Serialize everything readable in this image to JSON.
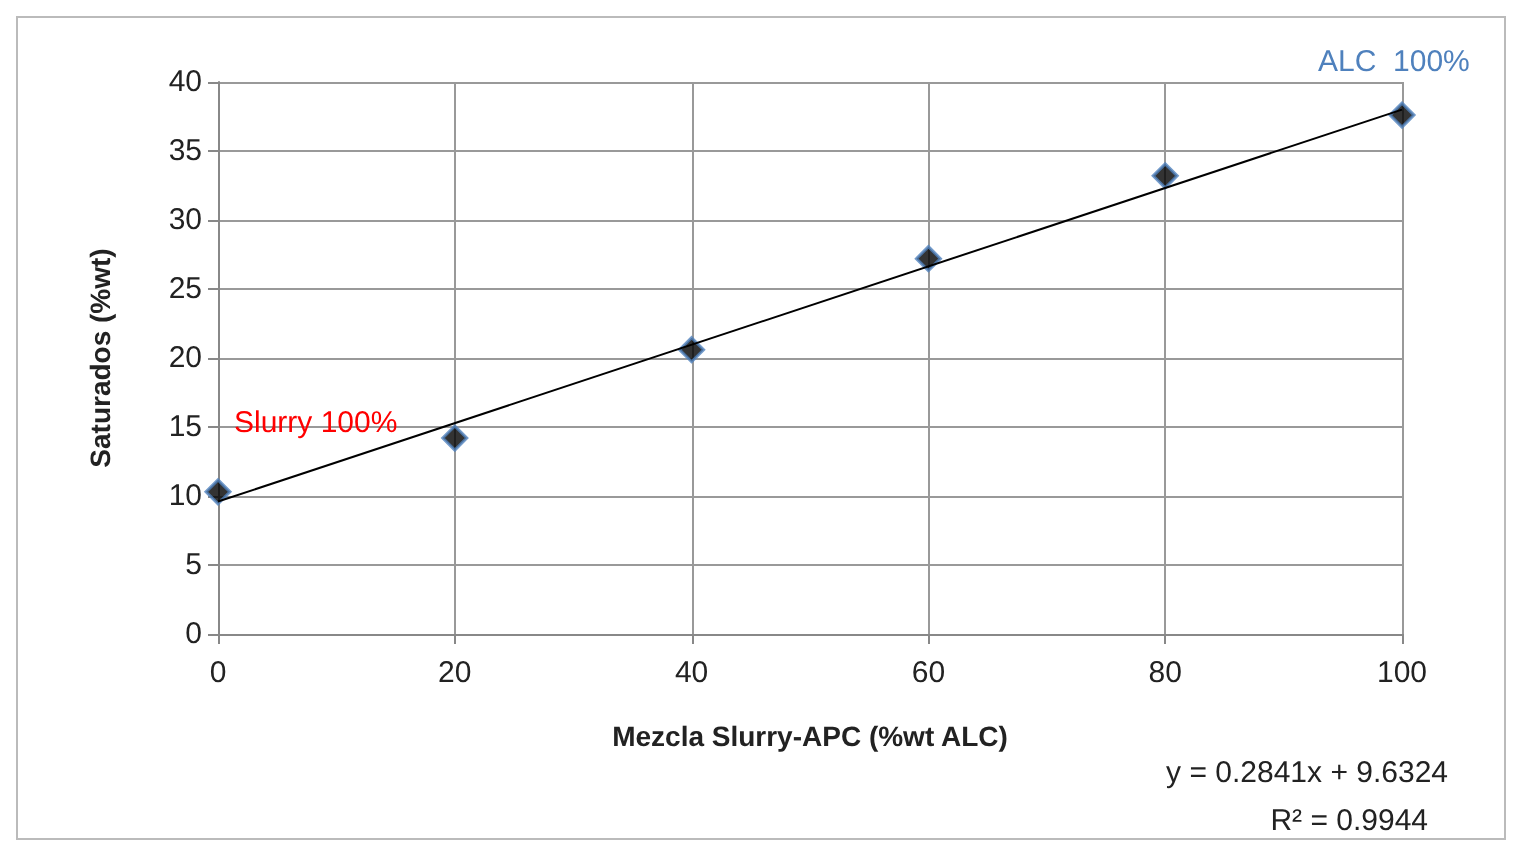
{
  "chart_data": {
    "type": "scatter",
    "xlabel": "Mezcla Slurry-APC (%wt ALC)",
    "ylabel": "Saturados (%wt)",
    "xlim": [
      0,
      100
    ],
    "xticks": [
      0,
      20,
      40,
      60,
      80,
      100
    ],
    "ylim": [
      0,
      40
    ],
    "yticks": [
      0,
      5,
      10,
      15,
      20,
      25,
      30,
      35,
      40
    ],
    "grid": true,
    "marker": "diamond",
    "series": [
      {
        "color": "#000000",
        "x": [
          0,
          20,
          40,
          60,
          80,
          100
        ],
        "values": [
          10.3,
          14.2,
          20.6,
          27.2,
          33.2,
          37.6
        ]
      },
      {
        "type": "line",
        "color": "#000000",
        "x": [
          0,
          100
        ],
        "values": [
          9.6,
          38.0
        ],
        "marker": "none",
        "line_style": "solid"
      }
    ],
    "annotations": [
      {
        "text": "Slurry 100%",
        "x": 0,
        "y": 10.3
      },
      {
        "text": "ALC  100%",
        "x": 100,
        "y": 37.6
      },
      "y = 0.2841x + 9.6324",
      "R² = 0.9944"
    ]
  }
}
